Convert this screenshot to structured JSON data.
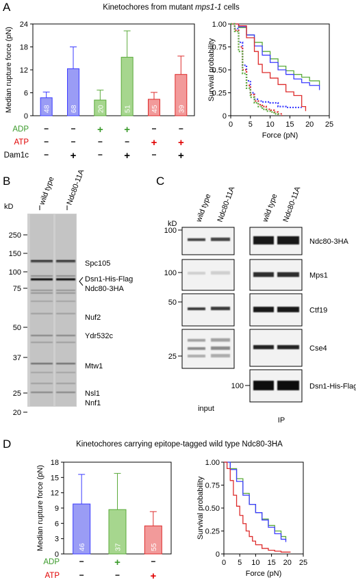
{
  "panels": {
    "A": {
      "letter": "A",
      "title": "Kinetochores from mutant ",
      "title_italic": "mps1-1",
      "title_suffix": " cells",
      "bar_chart": {
        "type": "bar",
        "ylabel": "Median rupture force (pN)",
        "ylim": [
          0,
          24
        ],
        "yticks": [
          "0",
          "6",
          "12",
          "18",
          "24"
        ],
        "values": [
          4.7,
          12.3,
          4.1,
          15.3,
          4.3,
          10.8
        ],
        "errors": [
          1.5,
          5.7,
          2.6,
          6.9,
          1.8,
          4.8
        ],
        "n_labels": [
          "48",
          "68",
          "20",
          "51",
          "45",
          "39"
        ],
        "colors": [
          "#3b3bff",
          "#3b3bff",
          "#5aaa3a",
          "#5aaa3a",
          "#dd2a2a",
          "#dd2a2a"
        ],
        "fill_colors": [
          "#9a9cf5",
          "#9a9cf5",
          "#a6d68e",
          "#a6d68e",
          "#f29a9a",
          "#f29a9a"
        ],
        "conditions": [
          {
            "label": "ADP",
            "color": "#3a9a2a",
            "symbols": [
              "−",
              "−",
              "+",
              "+",
              "−",
              "−"
            ]
          },
          {
            "label": "ATP",
            "color": "#e00000",
            "symbols": [
              "−",
              "−",
              "−",
              "−",
              "+",
              "+"
            ]
          },
          {
            "label": "Dam1c",
            "color": "#000000",
            "symbols": [
              "−",
              "+",
              "−",
              "+",
              "−",
              "+"
            ]
          }
        ]
      },
      "survival_chart": {
        "type": "line",
        "xlabel": "Force (pN)",
        "ylabel": "Survival probability",
        "xlim": [
          0,
          25
        ],
        "ylim": [
          0,
          1
        ],
        "xticks": [
          "0",
          "5",
          "10",
          "15",
          "20",
          "25"
        ],
        "yticks": [
          "0",
          "0.25",
          "0.50",
          "0.75",
          "1.00"
        ],
        "series": [
          {
            "color": "#5aaa3a",
            "dashed": false,
            "x": [
              0,
              2,
              4,
              6,
              8,
              10,
              12,
              14,
              16,
              18,
              20,
              22.5
            ],
            "y": [
              1.0,
              0.96,
              0.88,
              0.8,
              0.7,
              0.62,
              0.54,
              0.49,
              0.45,
              0.42,
              0.38,
              0.33
            ]
          },
          {
            "color": "#3b3bff",
            "dashed": false,
            "x": [
              0,
              2,
              4,
              6,
              8,
              10,
              12,
              14,
              16,
              18,
              20,
              22.5
            ],
            "y": [
              1.0,
              0.97,
              0.88,
              0.76,
              0.66,
              0.58,
              0.5,
              0.45,
              0.4,
              0.36,
              0.33,
              0.28
            ]
          },
          {
            "color": "#dd2a2a",
            "dashed": false,
            "x": [
              0,
              2,
              4,
              6,
              7,
              8,
              10,
              12,
              14,
              16,
              18,
              19
            ],
            "y": [
              1.0,
              0.98,
              0.85,
              0.7,
              0.56,
              0.47,
              0.41,
              0.34,
              0.26,
              0.22,
              0.1,
              0.05
            ]
          },
          {
            "color": "#3b3bff",
            "dashed": true,
            "x": [
              0,
              1,
              2,
              3,
              4,
              5,
              6,
              7,
              8,
              10,
              12,
              14,
              16,
              18
            ],
            "y": [
              1.0,
              0.95,
              0.8,
              0.55,
              0.38,
              0.25,
              0.18,
              0.16,
              0.15,
              0.14,
              0.1,
              0.09,
              0.09,
              0.09
            ]
          },
          {
            "color": "#dd2a2a",
            "dashed": true,
            "x": [
              0,
              1,
              2,
              3,
              4,
              5,
              6,
              7,
              8,
              9,
              10,
              11,
              12,
              13
            ],
            "y": [
              1.0,
              0.93,
              0.75,
              0.5,
              0.33,
              0.23,
              0.16,
              0.12,
              0.1,
              0.07,
              0.06,
              0.04,
              0.02,
              0.0
            ]
          },
          {
            "color": "#5aaa3a",
            "dashed": true,
            "x": [
              0,
              1,
              2,
              3,
              4,
              5,
              6,
              7,
              8,
              9,
              10,
              11,
              12
            ],
            "y": [
              1.0,
              0.92,
              0.7,
              0.46,
              0.3,
              0.2,
              0.14,
              0.1,
              0.07,
              0.05,
              0.04,
              0.02,
              0.0
            ]
          }
        ]
      }
    },
    "B": {
      "letter": "B",
      "lane_labels": [
        "wild type",
        "Ndc80-11A"
      ],
      "kd_label": "kD",
      "markers": [
        "250",
        "150",
        "100",
        "75",
        "50",
        "37",
        "25",
        "20"
      ],
      "band_labels": [
        "Spc105",
        "Dsn1-His-Flag",
        "Ndc80-3HA",
        "Nuf2",
        "Ydr532c",
        "Mtw1",
        "Nsl1",
        "Nnf1"
      ]
    },
    "C": {
      "letter": "C",
      "lane_labels_input": [
        "wild type",
        "Ndc80-11A"
      ],
      "lane_labels_ip": [
        "wild type",
        "Ndc80-11A"
      ],
      "kd_label": "kD",
      "input_markers": [
        "100",
        "100",
        "50",
        "25"
      ],
      "ip_marker": "100",
      "blot_labels": [
        "Ndc80-3HA",
        "Mps1",
        "Ctf19",
        "Cse4",
        "Dsn1-His-Flag"
      ],
      "input_label": "input",
      "ip_label": "IP"
    },
    "D": {
      "letter": "D",
      "title": "Kinetochores carrying epitope-tagged wild type Ndc80-3HA",
      "bar_chart": {
        "type": "bar",
        "ylabel": "Median rupture force (pN)",
        "ylim": [
          0,
          18
        ],
        "yticks": [
          "0",
          "3",
          "6",
          "9",
          "12",
          "15",
          "18"
        ],
        "values": [
          9.8,
          8.7,
          5.5
        ],
        "errors": [
          5.8,
          7.1,
          2.8
        ],
        "n_labels": [
          "46",
          "37",
          "55"
        ],
        "colors": [
          "#3b3bff",
          "#5aaa3a",
          "#dd2a2a"
        ],
        "fill_colors": [
          "#9a9cf5",
          "#a6d68e",
          "#f29a9a"
        ],
        "conditions": [
          {
            "label": "ADP",
            "color": "#3a9a2a",
            "symbols": [
              "−",
              "+",
              "−"
            ]
          },
          {
            "label": "ATP",
            "color": "#e00000",
            "symbols": [
              "−",
              "−",
              "+"
            ]
          }
        ]
      },
      "survival_chart": {
        "type": "line",
        "xlabel": "Force (pN)",
        "ylabel": "Survival probability",
        "xlim": [
          0,
          25
        ],
        "ylim": [
          0,
          1
        ],
        "xticks": [
          "0",
          "5",
          "10",
          "15",
          "20",
          "25"
        ],
        "yticks": [
          "0",
          "0.25",
          "0.50",
          "0.75",
          "1.00"
        ],
        "series": [
          {
            "color": "#5aaa3a",
            "dashed": false,
            "x": [
              0,
              2,
              4,
              6,
              8,
              10,
              12,
              14,
              16,
              18,
              19.5
            ],
            "y": [
              1.0,
              0.93,
              0.82,
              0.66,
              0.54,
              0.45,
              0.38,
              0.31,
              0.25,
              0.19,
              0.15
            ]
          },
          {
            "color": "#3b3bff",
            "dashed": false,
            "x": [
              0,
              2,
              4,
              6,
              8,
              10,
              12,
              14,
              16,
              18,
              19.5
            ],
            "y": [
              1.0,
              0.92,
              0.79,
              0.64,
              0.54,
              0.45,
              0.37,
              0.29,
              0.22,
              0.16,
              0.13
            ]
          },
          {
            "color": "#dd2a2a",
            "dashed": false,
            "x": [
              0,
              1,
              2,
              3,
              4,
              5,
              6,
              7,
              8,
              9,
              10,
              12,
              14,
              16,
              18,
              21
            ],
            "y": [
              1.0,
              0.93,
              0.8,
              0.64,
              0.52,
              0.42,
              0.33,
              0.25,
              0.19,
              0.14,
              0.1,
              0.06,
              0.04,
              0.03,
              0.02,
              0.02
            ]
          }
        ]
      }
    }
  }
}
